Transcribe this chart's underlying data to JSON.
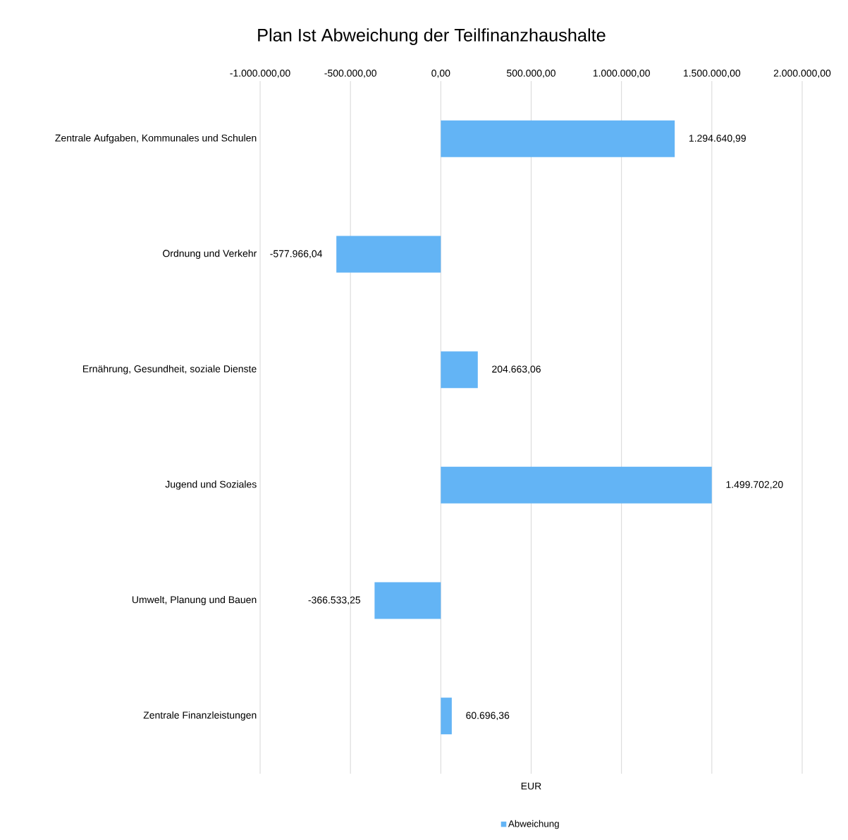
{
  "chart_data": {
    "type": "bar",
    "orientation": "horizontal",
    "title": "Plan Ist Abweichung der Teilfinanzhaushalte",
    "xlabel": "EUR",
    "categories": [
      "Zentrale Aufgaben, Kommunales und Schulen",
      "Ordnung und Verkehr",
      "Ernährung, Gesundheit, soziale Dienste",
      "Jugend und Soziales",
      "Umwelt, Planung und Bauen",
      "Zentrale Finanzleistungen"
    ],
    "series": [
      {
        "name": "Abweichung",
        "color": "#63b4f5",
        "values": [
          1294640.99,
          -577966.04,
          204663.06,
          1499702.2,
          -366533.25,
          60696.36
        ],
        "value_labels": [
          "1.294.640,99",
          "-577.966,04",
          "204.663,06",
          "1.499.702,20",
          "-366.533,25",
          "60.696,36"
        ]
      }
    ],
    "xlim": [
      -1000000,
      2000000
    ],
    "xticks": [
      {
        "value": -1000000,
        "label": "-1.000.000,00"
      },
      {
        "value": -500000,
        "label": "-500.000,00"
      },
      {
        "value": 0,
        "label": "0,00"
      },
      {
        "value": 500000,
        "label": "500.000,00"
      },
      {
        "value": 1000000,
        "label": "1.000.000,00"
      },
      {
        "value": 1500000,
        "label": "1.500.000,00"
      },
      {
        "value": 2000000,
        "label": "2.000.000,00"
      }
    ],
    "grid": "x",
    "legend": "bottom"
  }
}
